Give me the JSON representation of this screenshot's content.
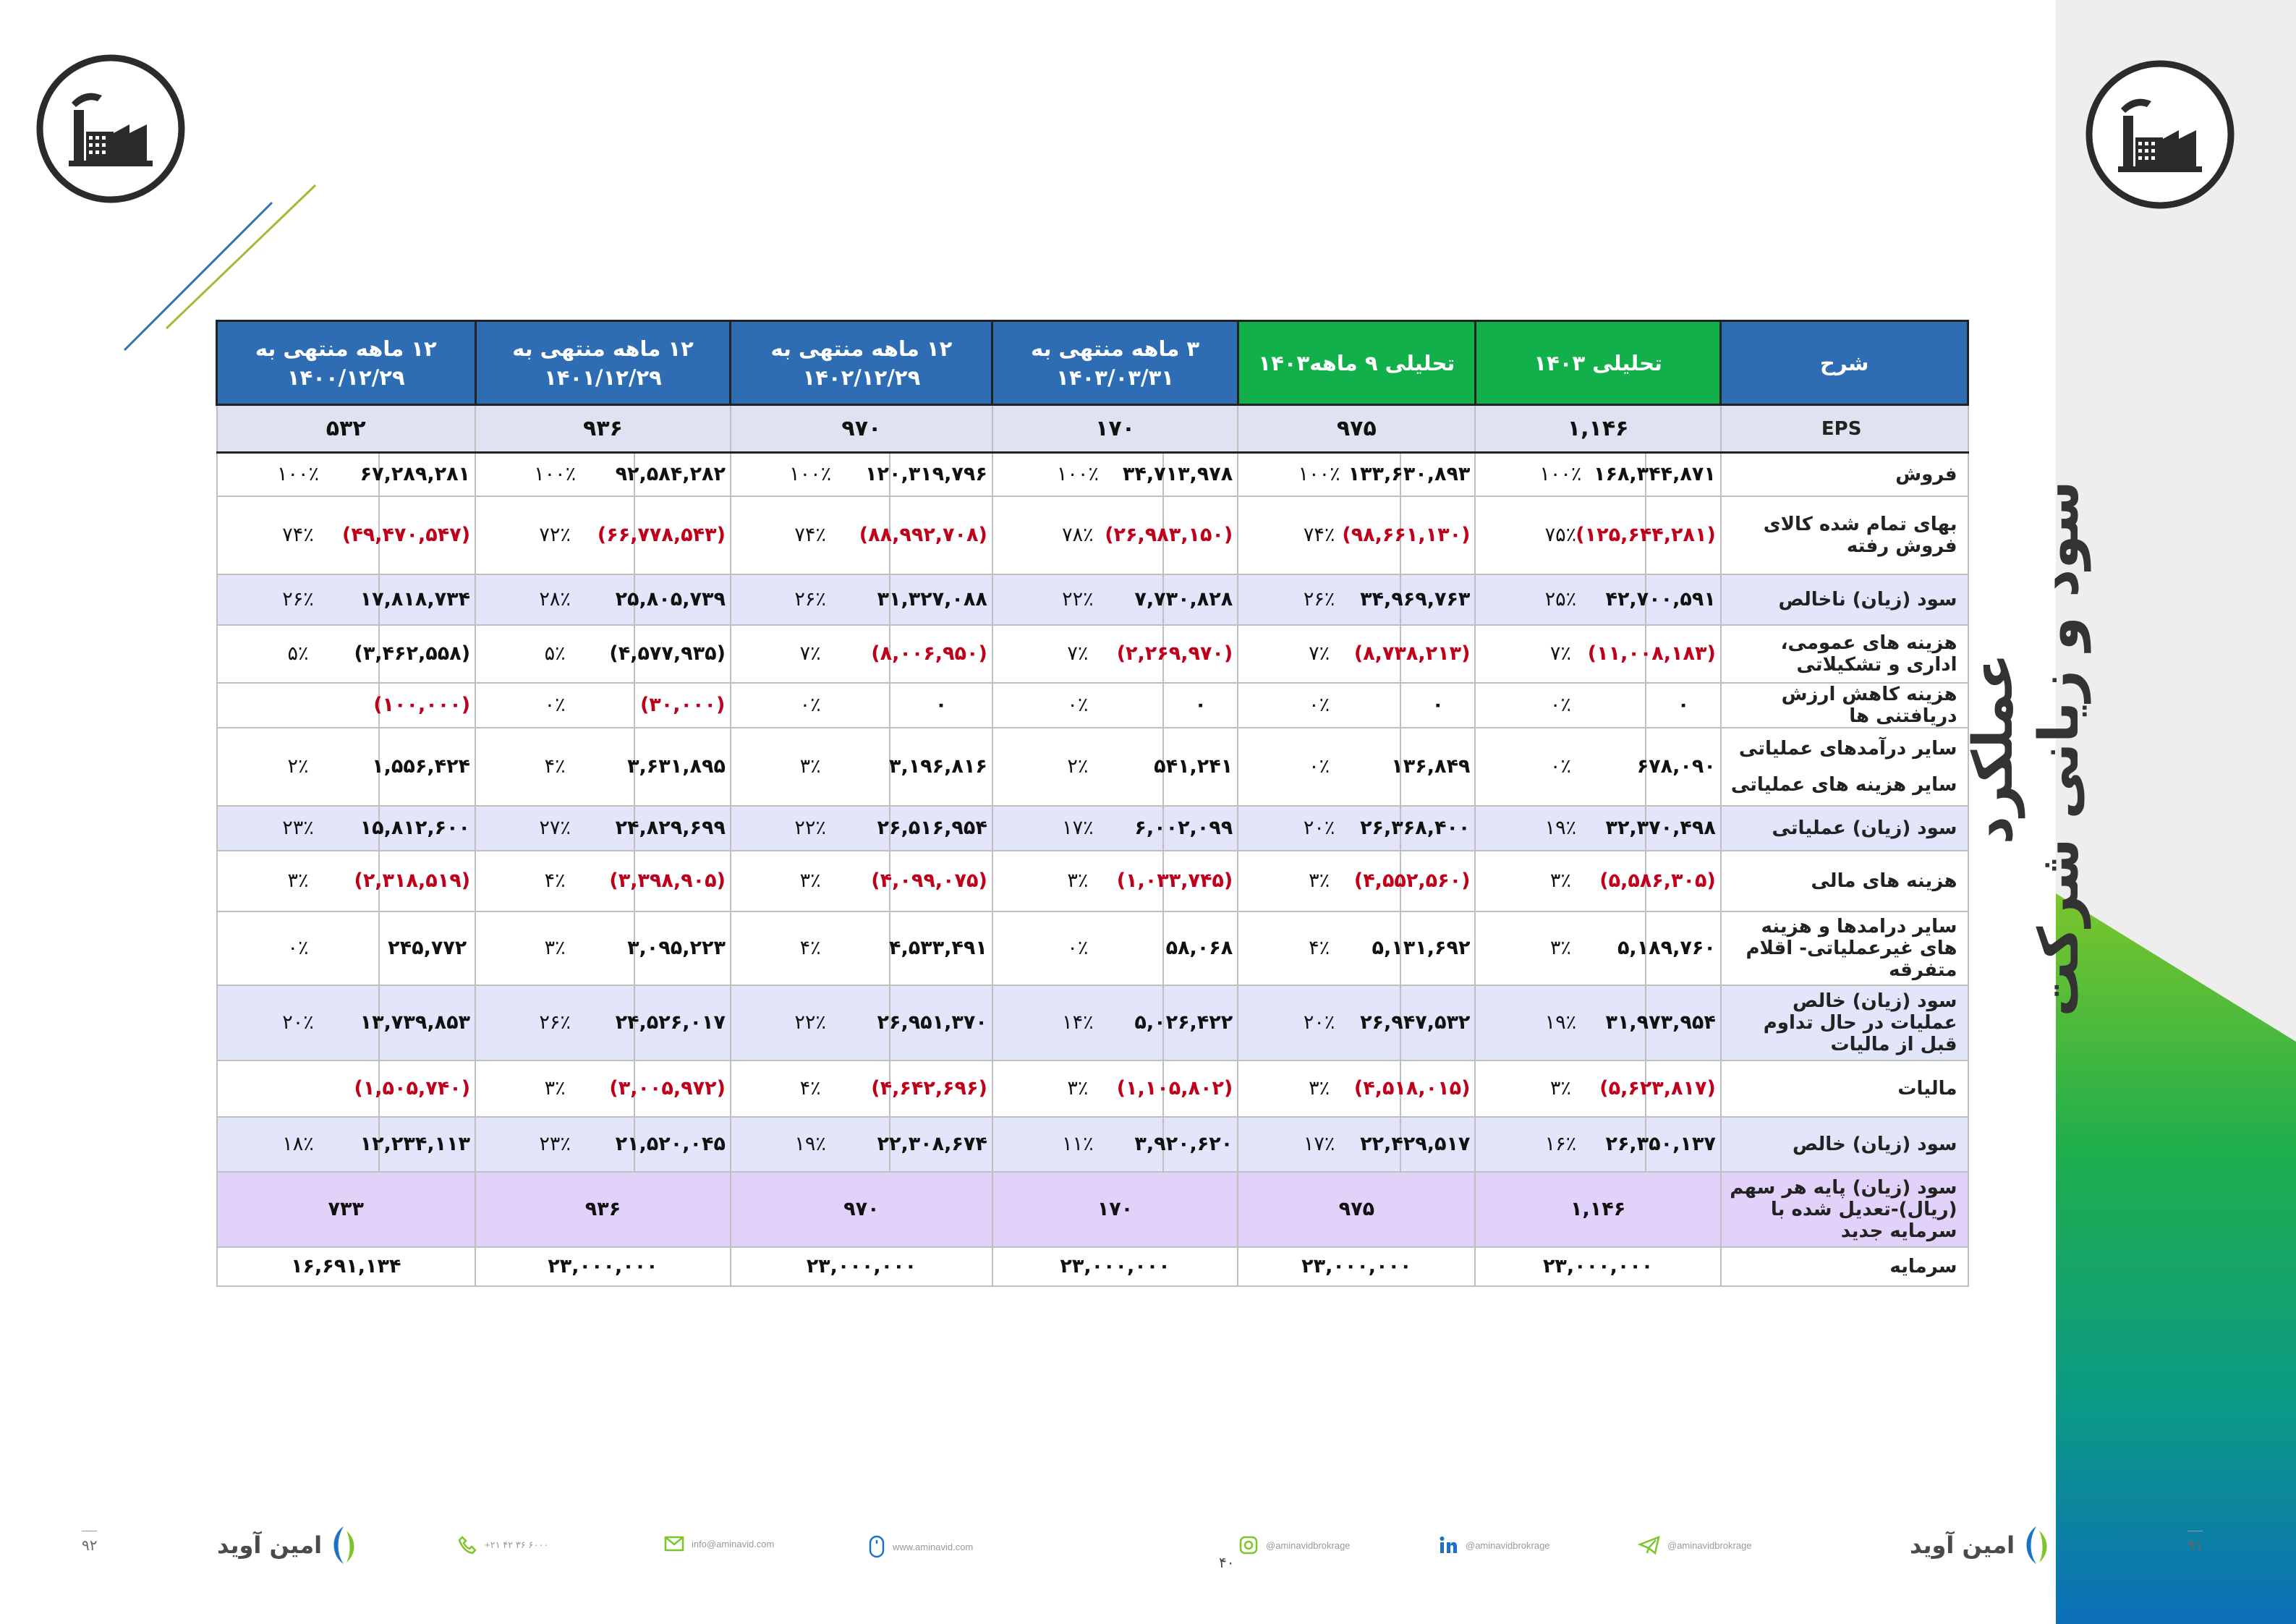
{
  "side_title": {
    "line1": "عملکرد",
    "line2": "سود و زیانی شرکت"
  },
  "columns": [
    {
      "line1": "شرح",
      "line2": ""
    },
    {
      "line1": "تحلیلی ۱۴۰۳",
      "line2": ""
    },
    {
      "line1": "تحلیلی ۹ ماهه۱۴۰۳",
      "line2": ""
    },
    {
      "line1": "۳ ماهه منتهی به",
      "line2": "۱۴۰۳/۰۳/۳۱"
    },
    {
      "line1": "۱۲ ماهه منتهی به",
      "line2": "۱۴۰۲/۱۲/۲۹"
    },
    {
      "line1": "۱۲ ماهه منتهی به",
      "line2": "۱۴۰۱/۱۲/۲۹"
    },
    {
      "line1": "۱۲ ماهه منتهی به",
      "line2": "۱۴۰۰/۱۲/۲۹"
    }
  ],
  "eps_row": {
    "label": "EPS",
    "values": [
      "۱,۱۴۶",
      "۹۷۵",
      "۱۷۰",
      "۹۷۰",
      "۹۳۶",
      "۵۳۲"
    ]
  },
  "rows": [
    {
      "label": "فروش",
      "style": "plain",
      "height": 60,
      "cells": [
        [
          "۱۶۸,۳۴۴,۸۷۱",
          "۱۰۰٪"
        ],
        [
          "۱۳۳,۶۳۰,۸۹۳",
          "۱۰۰٪"
        ],
        [
          "۳۴,۷۱۳,۹۷۸",
          "۱۰۰٪"
        ],
        [
          "۱۲۰,۳۱۹,۷۹۶",
          "۱۰۰٪"
        ],
        [
          "۹۲,۵۸۴,۲۸۲",
          "۱۰۰٪"
        ],
        [
          "۶۷,۲۸۹,۲۸۱",
          "۱۰۰٪"
        ]
      ],
      "neg": false
    },
    {
      "label": "بهای تمام شده کالای فروش رفته",
      "style": "plain",
      "height": 108,
      "cells": [
        [
          "(۱۲۵,۶۴۴,۲۸۱)",
          "۷۵٪"
        ],
        [
          "(۹۸,۶۶۱,۱۳۰)",
          "۷۴٪"
        ],
        [
          "(۲۶,۹۸۳,۱۵۰)",
          "۷۸٪"
        ],
        [
          "(۸۸,۹۹۲,۷۰۸)",
          "۷۴٪"
        ],
        [
          "(۶۶,۷۷۸,۵۴۳)",
          "۷۲٪"
        ],
        [
          "(۴۹,۴۷۰,۵۴۷)",
          "۷۴٪"
        ]
      ],
      "neg": true
    },
    {
      "label": "سود (زیان) ناخالص",
      "style": "hl",
      "height": 70,
      "cells": [
        [
          "۴۲,۷۰۰,۵۹۱",
          "۲۵٪"
        ],
        [
          "۳۴,۹۶۹,۷۶۳",
          "۲۶٪"
        ],
        [
          "۷,۷۳۰,۸۲۸",
          "۲۲٪"
        ],
        [
          "۳۱,۳۲۷,۰۸۸",
          "۲۶٪"
        ],
        [
          "۲۵,۸۰۵,۷۳۹",
          "۲۸٪"
        ],
        [
          "۱۷,۸۱۸,۷۳۴",
          "۲۶٪"
        ]
      ],
      "neg": false
    },
    {
      "label": "هزینه های عمومی، اداری و تشکیلاتی",
      "style": "plain",
      "height": 80,
      "cells": [
        [
          "(۱۱,۰۰۸,۱۸۳)",
          "۷٪"
        ],
        [
          "(۸,۷۳۸,۲۱۳)",
          "۷٪"
        ],
        [
          "(۲,۲۶۹,۹۷۰)",
          "۷٪"
        ],
        [
          "(۸,۰۰۶,۹۵۰)",
          "۷٪"
        ],
        [
          "(۴,۵۷۷,۹۳۵)",
          "۵٪"
        ],
        [
          "(۳,۴۶۲,۵۵۸)",
          "۵٪"
        ]
      ],
      "neg": [
        true,
        true,
        true,
        true,
        false,
        false
      ]
    },
    {
      "label": "هزینه کاهش ارزش دریافتنی ها",
      "style": "plain",
      "height": 56,
      "cells": [
        [
          "۰",
          "۰٪"
        ],
        [
          "۰",
          "۰٪"
        ],
        [
          "۰",
          "۰٪"
        ],
        [
          "۰",
          "۰٪"
        ],
        [
          "(۳۰,۰۰۰)",
          "۰٪"
        ],
        [
          "(۱۰۰,۰۰۰)",
          ""
        ]
      ],
      "neg": [
        false,
        false,
        false,
        false,
        true,
        true
      ]
    },
    {
      "label": "سایر درآمدهای عملیاتی",
      "label2": "سایر هزینه های عملیاتی",
      "style": "plain",
      "height": 108,
      "cells": [
        [
          "۶۷۸,۰۹۰",
          "۰٪"
        ],
        [
          "۱۳۶,۸۴۹",
          "۰٪"
        ],
        [
          "۵۴۱,۲۴۱",
          "۲٪"
        ],
        [
          "۳,۱۹۶,۸۱۶",
          "۳٪"
        ],
        [
          "۳,۶۳۱,۸۹۵",
          "۴٪"
        ],
        [
          "۱,۵۵۶,۴۲۴",
          "۲٪"
        ]
      ],
      "neg": false
    },
    {
      "label": "سود (زیان) عملیاتی",
      "style": "hl",
      "height": 62,
      "cells": [
        [
          "۳۲,۳۷۰,۴۹۸",
          "۱۹٪"
        ],
        [
          "۲۶,۳۶۸,۴۰۰",
          "۲۰٪"
        ],
        [
          "۶,۰۰۲,۰۹۹",
          "۱۷٪"
        ],
        [
          "۲۶,۵۱۶,۹۵۴",
          "۲۲٪"
        ],
        [
          "۲۴,۸۲۹,۶۹۹",
          "۲۷٪"
        ],
        [
          "۱۵,۸۱۲,۶۰۰",
          "۲۳٪"
        ]
      ],
      "neg": false
    },
    {
      "label": "هزینه های مالی",
      "style": "plain",
      "height": 84,
      "cells": [
        [
          "(۵,۵۸۶,۳۰۵)",
          "۳٪"
        ],
        [
          "(۴,۵۵۲,۵۶۰)",
          "۳٪"
        ],
        [
          "(۱,۰۳۳,۷۴۵)",
          "۳٪"
        ],
        [
          "(۴,۰۹۹,۰۷۵)",
          "۳٪"
        ],
        [
          "(۳,۳۹۸,۹۰۵)",
          "۴٪"
        ],
        [
          "(۲,۳۱۸,۵۱۹)",
          "۳٪"
        ]
      ],
      "neg": true
    },
    {
      "label": "سایر درامدها و هزینه های غیرعملیاتی- اقلام متفرقه",
      "style": "plain",
      "height": 102,
      "cells": [
        [
          "۵,۱۸۹,۷۶۰",
          "۳٪"
        ],
        [
          "۵,۱۳۱,۶۹۲",
          "۴٪"
        ],
        [
          "۵۸,۰۶۸",
          "۰٪"
        ],
        [
          "۴,۵۳۳,۴۹۱",
          "۴٪"
        ],
        [
          "۳,۰۹۵,۲۲۳",
          "۳٪"
        ],
        [
          "۲۴۵,۷۷۲",
          "۰٪"
        ]
      ],
      "neg": false
    },
    {
      "label": "سود (زیان) خالص عملیات در حال تداوم قبل از مالیات",
      "style": "hl",
      "height": 104,
      "cells": [
        [
          "۳۱,۹۷۳,۹۵۴",
          "۱۹٪"
        ],
        [
          "۲۶,۹۴۷,۵۳۲",
          "۲۰٪"
        ],
        [
          "۵,۰۲۶,۴۲۲",
          "۱۴٪"
        ],
        [
          "۲۶,۹۵۱,۳۷۰",
          "۲۲٪"
        ],
        [
          "۲۴,۵۲۶,۰۱۷",
          "۲۶٪"
        ],
        [
          "۱۳,۷۳۹,۸۵۳",
          "۲۰٪"
        ]
      ],
      "neg": false
    },
    {
      "label": "مالیات",
      "style": "plain",
      "height": 78,
      "cells": [
        [
          "(۵,۶۲۳,۸۱۷)",
          "۳٪"
        ],
        [
          "(۴,۵۱۸,۰۱۵)",
          "۳٪"
        ],
        [
          "(۱,۱۰۵,۸۰۲)",
          "۳٪"
        ],
        [
          "(۴,۶۴۲,۶۹۶)",
          "۴٪"
        ],
        [
          "(۳,۰۰۵,۹۷۲)",
          "۳٪"
        ],
        [
          "(۱,۵۰۵,۷۴۰)",
          ""
        ]
      ],
      "neg": true
    },
    {
      "label": "سود (زیان) خالص",
      "style": "hl",
      "height": 76,
      "cells": [
        [
          "۲۶,۳۵۰,۱۳۷",
          "۱۶٪"
        ],
        [
          "۲۲,۴۲۹,۵۱۷",
          "۱۷٪"
        ],
        [
          "۳,۹۲۰,۶۲۰",
          "۱۱٪"
        ],
        [
          "۲۲,۳۰۸,۶۷۴",
          "۱۹٪"
        ],
        [
          "۲۱,۵۲۰,۰۴۵",
          "۲۳٪"
        ],
        [
          "۱۲,۲۳۴,۱۱۳",
          "۱۸٪"
        ]
      ],
      "neg": false
    }
  ],
  "eps_adjusted": {
    "label": "سود (زیان) پایه هر سهم (ریال)-تعدیل شده با سرمایه جدید",
    "values": [
      "۱,۱۴۶",
      "۹۷۵",
      "۱۷۰",
      "۹۷۰",
      "۹۳۶",
      "۷۳۳"
    ]
  },
  "capital": {
    "label": "سرمایه",
    "values": [
      "۲۳,۰۰۰,۰۰۰",
      "۲۳,۰۰۰,۰۰۰",
      "۲۳,۰۰۰,۰۰۰",
      "۲۳,۰۰۰,۰۰۰",
      "۲۳,۰۰۰,۰۰۰",
      "۱۶,۶۹۱,۱۳۴"
    ]
  },
  "footer": {
    "page_left": "۹۲",
    "page_right": "۹۱",
    "center_number": "۴۰",
    "brand": "امین آوید",
    "phone": "+۲۱ ۴۲ ۳۶ ۶۰۰۰",
    "email": "info@aminavid.com",
    "website": "www.aminavid.com",
    "instagram": "@aminavidbrokrage",
    "linkedin": "@aminavidbrokrage",
    "telegram": "@aminavidbrokrage"
  },
  "colors": {
    "header_blue": "#2e6db4",
    "header_green": "#11b04a",
    "negative_red": "#c0001a",
    "highlight_row": "#e3e5fa",
    "purple_row": "#e2d2fa"
  }
}
